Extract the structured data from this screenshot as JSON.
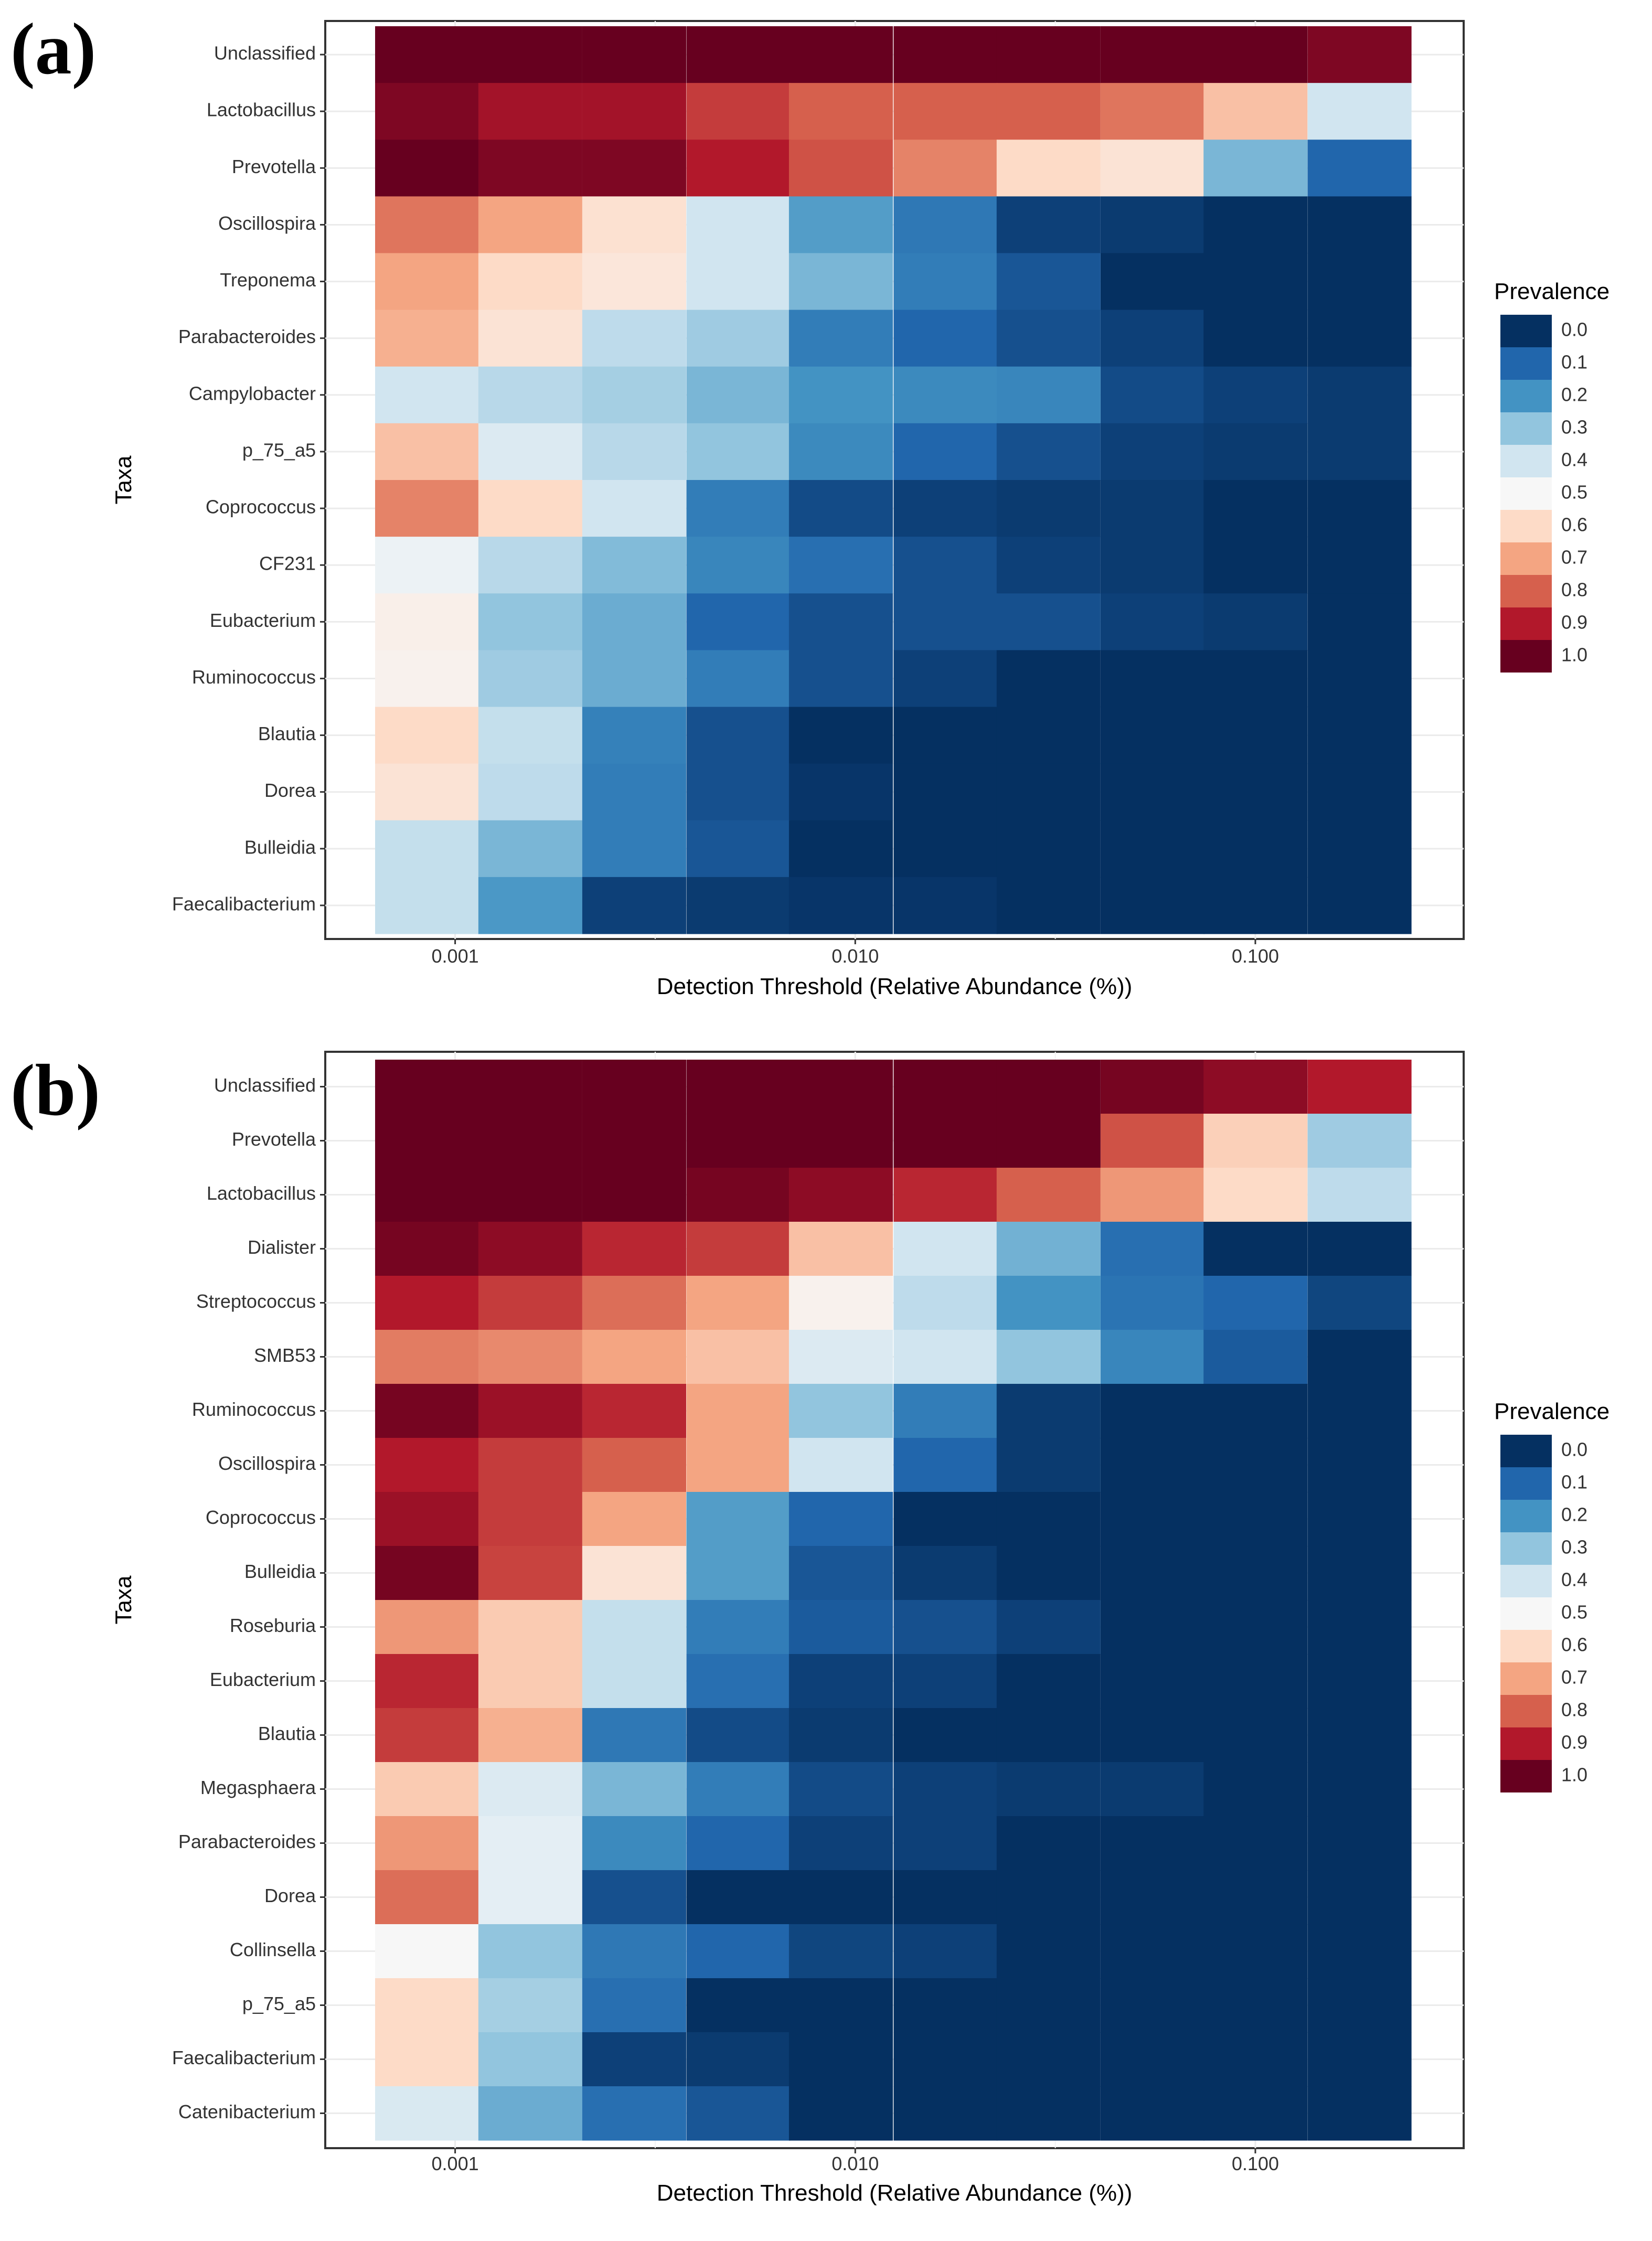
{
  "chart_data": [
    {
      "panel_label": "(a)",
      "type": "heatmap",
      "xlabel": "Detection Threshold (Relative Abundance (%))",
      "ylabel": "Taxa",
      "x_scale": "log10",
      "x_tick_labels": [
        "0.001",
        "0.010",
        "0.100"
      ],
      "x_ticks": [
        0.001,
        0.01,
        0.1
      ],
      "x_thresholds": [
        0.00085,
        0.00154,
        0.0028,
        0.0051,
        0.0092,
        0.0168,
        0.0304,
        0.0553,
        0.1,
        0.182
      ],
      "legend_title": "Prevalence",
      "legend_labels": [
        "0.0",
        "0.1",
        "0.2",
        "0.3",
        "0.4",
        "0.5",
        "0.6",
        "0.7",
        "0.8",
        "0.9",
        "1.0"
      ],
      "legend_values": [
        0,
        0.1,
        0.2,
        0.3,
        0.4,
        0.5,
        0.6,
        0.7,
        0.8,
        0.9,
        1.0
      ],
      "color_scale": [
        "#053061",
        "#2166ac",
        "#4393c3",
        "#92c5de",
        "#d1e5f0",
        "#f7f7f7",
        "#fddbc7",
        "#f4a582",
        "#d6604d",
        "#b2182b",
        "#67001f"
      ],
      "taxa": [
        "Unclassified",
        "Lactobacillus",
        "Prevotella",
        "Oscillospira",
        "Treponema",
        "Parabacteroides",
        "Campylobacter",
        "p_75_a5",
        "Coprococcus",
        "CF231",
        "Eubacterium",
        "Ruminococcus",
        "Blautia",
        "Dorea",
        "Bulleidia",
        "Faecalibacterium"
      ],
      "values": [
        [
          1.0,
          1.0,
          1.0,
          1.0,
          1.0,
          1.0,
          1.0,
          1.0,
          1.0,
          0.97
        ],
        [
          0.97,
          0.92,
          0.92,
          0.85,
          0.8,
          0.8,
          0.8,
          0.77,
          0.65,
          0.4
        ],
        [
          1.0,
          0.97,
          0.97,
          0.9,
          0.82,
          0.75,
          0.6,
          0.57,
          0.27,
          0.1
        ],
        [
          0.77,
          0.7,
          0.58,
          0.4,
          0.22,
          0.14,
          0.03,
          0.02,
          0.0,
          0.0
        ],
        [
          0.7,
          0.6,
          0.56,
          0.4,
          0.27,
          0.15,
          0.07,
          0.0,
          0.0,
          0.0
        ],
        [
          0.68,
          0.57,
          0.37,
          0.32,
          0.15,
          0.1,
          0.06,
          0.03,
          0.0,
          0.0
        ],
        [
          0.4,
          0.36,
          0.33,
          0.27,
          0.2,
          0.18,
          0.17,
          0.05,
          0.03,
          0.02
        ],
        [
          0.65,
          0.43,
          0.36,
          0.3,
          0.18,
          0.1,
          0.06,
          0.03,
          0.02,
          0.02
        ],
        [
          0.75,
          0.6,
          0.4,
          0.15,
          0.05,
          0.03,
          0.02,
          0.02,
          0.0,
          0.0
        ],
        [
          0.47,
          0.36,
          0.28,
          0.17,
          0.12,
          0.06,
          0.03,
          0.02,
          0.0,
          0.0
        ],
        [
          0.53,
          0.3,
          0.25,
          0.1,
          0.06,
          0.06,
          0.06,
          0.03,
          0.02,
          0.0
        ],
        [
          0.52,
          0.32,
          0.25,
          0.15,
          0.06,
          0.03,
          0.0,
          0.0,
          0.0,
          0.0
        ],
        [
          0.6,
          0.38,
          0.16,
          0.06,
          0.0,
          0.0,
          0.0,
          0.0,
          0.0,
          0.0
        ],
        [
          0.57,
          0.37,
          0.15,
          0.06,
          0.01,
          0.0,
          0.0,
          0.0,
          0.0,
          0.0
        ],
        [
          0.38,
          0.27,
          0.15,
          0.07,
          0.0,
          0.0,
          0.0,
          0.0,
          0.0,
          0.0
        ],
        [
          0.38,
          0.21,
          0.03,
          0.02,
          0.01,
          0.01,
          0.0,
          0.0,
          0.0,
          0.0
        ]
      ]
    },
    {
      "panel_label": "(b)",
      "type": "heatmap",
      "xlabel": "Detection Threshold (Relative Abundance (%))",
      "ylabel": "Taxa",
      "x_scale": "log10",
      "x_tick_labels": [
        "0.001",
        "0.010",
        "0.100"
      ],
      "x_ticks": [
        0.001,
        0.01,
        0.1
      ],
      "x_thresholds": [
        0.00085,
        0.00154,
        0.0028,
        0.0051,
        0.0092,
        0.0168,
        0.0304,
        0.0553,
        0.1,
        0.182
      ],
      "legend_title": "Prevalence",
      "legend_labels": [
        "0.0",
        "0.1",
        "0.2",
        "0.3",
        "0.4",
        "0.5",
        "0.6",
        "0.7",
        "0.8",
        "0.9",
        "1.0"
      ],
      "legend_values": [
        0,
        0.1,
        0.2,
        0.3,
        0.4,
        0.5,
        0.6,
        0.7,
        0.8,
        0.9,
        1.0
      ],
      "color_scale": [
        "#053061",
        "#2166ac",
        "#4393c3",
        "#92c5de",
        "#d1e5f0",
        "#f7f7f7",
        "#fddbc7",
        "#f4a582",
        "#d6604d",
        "#b2182b",
        "#67001f"
      ],
      "taxa": [
        "Unclassified",
        "Prevotella",
        "Lactobacillus",
        "Dialister",
        "Streptococcus",
        "SMB53",
        "Ruminococcus",
        "Oscillospira",
        "Coprococcus",
        "Bulleidia",
        "Roseburia",
        "Eubacterium",
        "Blautia",
        "Megasphaera",
        "Parabacteroides",
        "Dorea",
        "Collinsella",
        "p_75_a5",
        "Faecalibacterium",
        "Catenibacterium"
      ],
      "values": [
        [
          1.0,
          1.0,
          1.0,
          1.0,
          1.0,
          1.0,
          1.0,
          0.98,
          0.95,
          0.9
        ],
        [
          1.0,
          1.0,
          1.0,
          1.0,
          1.0,
          1.0,
          1.0,
          0.82,
          0.62,
          0.32
        ],
        [
          1.0,
          1.0,
          1.0,
          0.98,
          0.95,
          0.88,
          0.8,
          0.72,
          0.6,
          0.37
        ],
        [
          0.98,
          0.95,
          0.88,
          0.85,
          0.65,
          0.4,
          0.26,
          0.12,
          0.0,
          0.0
        ],
        [
          0.9,
          0.85,
          0.78,
          0.7,
          0.52,
          0.37,
          0.2,
          0.13,
          0.1,
          0.04
        ],
        [
          0.76,
          0.74,
          0.7,
          0.65,
          0.43,
          0.4,
          0.3,
          0.17,
          0.08,
          0.0
        ],
        [
          0.98,
          0.93,
          0.88,
          0.7,
          0.3,
          0.15,
          0.02,
          0.0,
          0.0,
          0.0
        ],
        [
          0.9,
          0.85,
          0.8,
          0.7,
          0.4,
          0.1,
          0.02,
          0.0,
          0.0,
          0.0
        ],
        [
          0.93,
          0.85,
          0.7,
          0.22,
          0.1,
          0.0,
          0.0,
          0.0,
          0.0,
          0.0
        ],
        [
          0.98,
          0.84,
          0.57,
          0.22,
          0.07,
          0.02,
          0.0,
          0.0,
          0.0,
          0.0
        ],
        [
          0.72,
          0.63,
          0.38,
          0.15,
          0.08,
          0.06,
          0.03,
          0.0,
          0.0,
          0.0
        ],
        [
          0.88,
          0.63,
          0.38,
          0.12,
          0.03,
          0.03,
          0.0,
          0.0,
          0.0,
          0.0
        ],
        [
          0.85,
          0.68,
          0.14,
          0.05,
          0.02,
          0.0,
          0.0,
          0.0,
          0.0,
          0.0
        ],
        [
          0.63,
          0.43,
          0.27,
          0.15,
          0.05,
          0.03,
          0.02,
          0.02,
          0.0,
          0.0
        ],
        [
          0.72,
          0.45,
          0.18,
          0.1,
          0.03,
          0.03,
          0.0,
          0.0,
          0.0,
          0.0
        ],
        [
          0.78,
          0.45,
          0.06,
          0.0,
          0.0,
          0.0,
          0.0,
          0.0,
          0.0,
          0.0
        ],
        [
          0.5,
          0.3,
          0.14,
          0.1,
          0.04,
          0.03,
          0.0,
          0.0,
          0.0,
          0.0
        ],
        [
          0.6,
          0.33,
          0.12,
          0.0,
          0.0,
          0.0,
          0.0,
          0.0,
          0.0,
          0.0
        ],
        [
          0.6,
          0.3,
          0.03,
          0.02,
          0.0,
          0.0,
          0.0,
          0.0,
          0.0,
          0.0
        ],
        [
          0.42,
          0.25,
          0.12,
          0.07,
          0.0,
          0.0,
          0.0,
          0.0,
          0.0,
          0.0
        ]
      ]
    }
  ]
}
